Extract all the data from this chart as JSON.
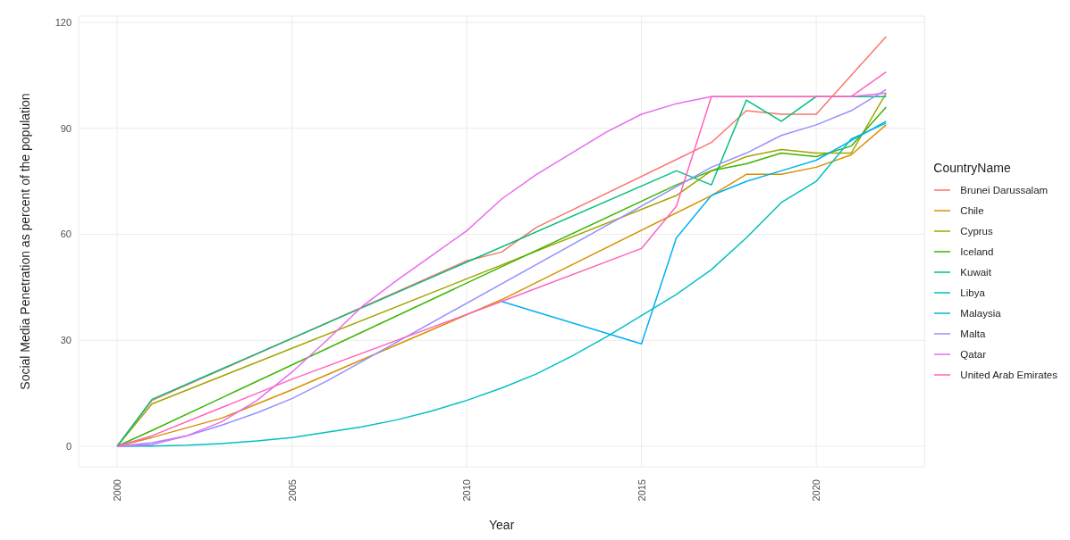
{
  "chart_data": {
    "type": "line",
    "xlabel": "Year",
    "ylabel": "Social Media Penetration as percent of the population",
    "legend_title": "CountryName",
    "xlim": [
      1998.9,
      2023.1
    ],
    "xticks": [
      2000,
      2005,
      2010,
      2015,
      2020
    ],
    "ylim": [
      -5.8,
      121.8
    ],
    "yticks": [
      0,
      30,
      60,
      90,
      120
    ],
    "grid": true,
    "legend": "right",
    "marker": "none",
    "line_style": "solid",
    "series": [
      {
        "name": "Brunei Darussalam",
        "color": "#f8766d",
        "x": [
          2000,
          2001,
          2010,
          2011,
          2012,
          2017,
          2018,
          2019,
          2020,
          2021,
          2022
        ],
        "values": [
          0,
          13,
          52.5,
          55,
          62,
          86,
          95,
          94,
          94,
          105,
          116
        ]
      },
      {
        "name": "Chile",
        "color": "#d89000",
        "x": [
          2000,
          2001,
          2003,
          2005,
          2011,
          2017,
          2018,
          2019,
          2020,
          2021,
          2022
        ],
        "values": [
          0,
          2.5,
          8,
          16,
          41.5,
          71,
          77,
          77,
          79,
          82.5,
          91
        ]
      },
      {
        "name": "Cyprus",
        "color": "#a3a500",
        "x": [
          2000,
          2001,
          2016,
          2017,
          2018,
          2019,
          2020,
          2021,
          2022
        ],
        "values": [
          0,
          12,
          71,
          78,
          82,
          84,
          83,
          83,
          100
        ]
      },
      {
        "name": "Iceland",
        "color": "#39b600",
        "x": [
          2000,
          2001,
          2016,
          2017,
          2018,
          2019,
          2020,
          2021,
          2022
        ],
        "values": [
          0,
          4.5,
          74,
          78,
          80,
          83,
          82,
          85,
          96
        ]
      },
      {
        "name": "Kuwait",
        "color": "#00bf7d",
        "x": [
          2000,
          2001,
          2016,
          2017,
          2018,
          2019,
          2020,
          2021,
          2022
        ],
        "values": [
          0,
          13.3,
          78,
          74,
          98,
          92,
          99,
          99,
          99
        ]
      },
      {
        "name": "Libya",
        "color": "#00bfc4",
        "x": [
          2000,
          2001,
          2002,
          2003,
          2004,
          2005,
          2006,
          2007,
          2008,
          2009,
          2010,
          2011,
          2012,
          2013,
          2014,
          2015,
          2016,
          2017,
          2018,
          2019,
          2020,
          2021,
          2022
        ],
        "values": [
          0,
          0.1,
          0.3,
          0.8,
          1.5,
          2.5,
          4,
          5.5,
          7.5,
          10,
          13,
          16.5,
          20.5,
          25.5,
          31,
          37,
          43,
          50,
          59,
          69,
          75,
          87,
          91.5
        ]
      },
      {
        "name": "Malaysia",
        "color": "#00b0f6",
        "x": [
          2011,
          2015,
          2016,
          2017,
          2018,
          2019,
          2020,
          2021,
          2022
        ],
        "values": [
          41,
          29,
          59,
          71,
          75,
          78,
          81,
          86.5,
          92
        ]
      },
      {
        "name": "Malta",
        "color": "#9590ff",
        "x": [
          2000,
          2001,
          2002,
          2003,
          2004,
          2005,
          2006,
          2007,
          2017,
          2018,
          2019,
          2020,
          2021,
          2022
        ],
        "values": [
          0,
          1,
          3,
          6,
          9.5,
          13.5,
          18.5,
          24,
          79,
          83,
          88,
          91,
          95,
          101
        ]
      },
      {
        "name": "Qatar",
        "color": "#e76bf3",
        "x": [
          2000,
          2001,
          2002,
          2003,
          2004,
          2005,
          2006,
          2007,
          2008,
          2009,
          2010,
          2011,
          2012,
          2013,
          2014,
          2015,
          2016,
          2017,
          2021,
          2022
        ],
        "values": [
          0,
          0.5,
          3,
          7,
          13,
          21,
          30,
          39.5,
          47,
          54,
          61,
          70,
          77,
          83,
          89,
          94,
          97,
          99,
          99,
          100
        ]
      },
      {
        "name": "United Arab Emirates",
        "color": "#ff62bc",
        "x": [
          2000,
          2001,
          2005,
          2011,
          2015,
          2016,
          2017,
          2021,
          2022
        ],
        "values": [
          0,
          3,
          19,
          41,
          56,
          68,
          99,
          99,
          106
        ]
      }
    ]
  }
}
